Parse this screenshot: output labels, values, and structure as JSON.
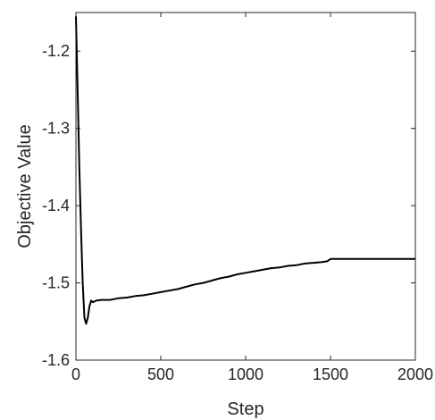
{
  "chart_data": {
    "type": "line",
    "title": "",
    "xlabel": "Step",
    "ylabel": "Objective Value",
    "xlim": [
      0,
      2000
    ],
    "ylim": [
      -1.6,
      -1.15
    ],
    "xticks": [
      0,
      500,
      1000,
      1500,
      2000
    ],
    "xtick_labels": [
      "0",
      "500",
      "1000",
      "1500",
      "2000"
    ],
    "yticks": [
      -1.6,
      -1.5,
      -1.4,
      -1.3,
      -1.2
    ],
    "ytick_labels": [
      "-1.6",
      "-1.5",
      "-1.4",
      "-1.3",
      "-1.2"
    ],
    "grid": false,
    "line_color": "#000000",
    "series": [
      {
        "name": "",
        "x": [
          0,
          10,
          20,
          30,
          40,
          50,
          60,
          70,
          80,
          90,
          100,
          120,
          150,
          200,
          250,
          300,
          350,
          400,
          450,
          500,
          550,
          600,
          650,
          700,
          750,
          800,
          850,
          900,
          950,
          1000,
          1050,
          1100,
          1150,
          1200,
          1250,
          1300,
          1350,
          1400,
          1450,
          1480,
          1500,
          1550,
          1600,
          1650,
          1700,
          1750,
          1800,
          1850,
          1900,
          1950,
          2000
        ],
        "y": [
          -1.155,
          -1.25,
          -1.35,
          -1.43,
          -1.5,
          -1.545,
          -1.553,
          -1.545,
          -1.53,
          -1.523,
          -1.525,
          -1.523,
          -1.522,
          -1.522,
          -1.52,
          -1.519,
          -1.517,
          -1.516,
          -1.514,
          -1.512,
          -1.51,
          -1.508,
          -1.505,
          -1.502,
          -1.5,
          -1.497,
          -1.494,
          -1.492,
          -1.489,
          -1.487,
          -1.485,
          -1.483,
          -1.481,
          -1.48,
          -1.478,
          -1.477,
          -1.475,
          -1.474,
          -1.473,
          -1.472,
          -1.469,
          -1.469,
          -1.469,
          -1.469,
          -1.469,
          -1.469,
          -1.469,
          -1.469,
          -1.469,
          -1.469,
          -1.469
        ]
      }
    ]
  }
}
